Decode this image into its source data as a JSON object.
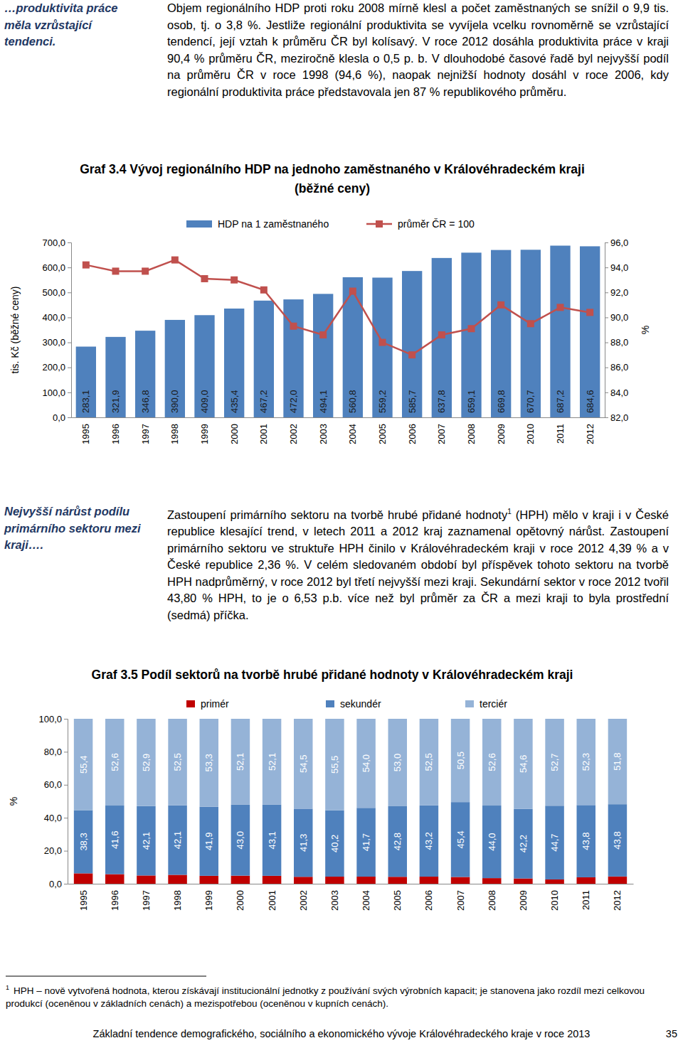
{
  "document": {
    "margin_note_1": "…produktivita práce měla vzrůstající tendenci.",
    "paragraph_1": "Objem regionálního HDP proti roku 2008 mírně klesl a počet zaměstnaných se snížil o 9,9 tis. osob, tj. o 3,8 %. Jestliže regionální produktivita se vyvíjela vcelku rovnoměrně se vzrůstající tendencí, její vztah k průměru ČR byl kolísavý. V roce 2012 dosáhla produktivita práce v kraji 90,4 % průměru ČR, meziročně klesla o 0,5 p. b. V dlouhodobé časové řadě byl nejvyšší podíl na průměru ČR v roce 1998 (94,6 %), naopak nejnižší hodnoty dosáhl v roce 2006, kdy regionální produktivita práce představovala jen 87 % republikového průměru.",
    "margin_note_2": "Nejvyšší nárůst podílu primárního sektoru mezi kraji….",
    "paragraph_2": {
      "before": "Zastoupení primárního sektoru na tvorbě hrubé přidané hodnoty",
      "note_mark": "1",
      "after": " (HPH) mělo v kraji i v České republice klesající trend, v letech 2011 a 2012 kraj zaznamenal opětovný nárůst. Zastoupení primárního sektoru ve struktuře HPH činilo v Královéhradeckém kraji v roce 2012 4,39 % a v České republice 2,36 %. V celém sledovaném období byl příspěvek tohoto sektoru na tvorbě HPH nadprůměrný, v roce 2012 byl třetí nejvyšší mezi kraji. Sekundární sektor v roce 2012 tvořil 43,80 % HPH, to je o 6,53 p.b. více než byl průměr za ČR a mezi kraji to byla prostřední (sedmá) příčka."
    },
    "footnote": {
      "mark": "1",
      "text": "HPH – nově vytvořená hodnota, kterou získávají institucionální jednotky z používání svých výrobních kapacit; je stanovena jako rozdíl mezi celkovou produkcí (oceněnou v základních cenách) a mezispotřebou (oceněnou v kupních cenách)."
    },
    "footer": "Základní tendence demografického, sociálního a ekonomického vývoje Královéhradeckého kraje v roce 2013",
    "page_number": 35
  },
  "chart_data": [
    {
      "type": "bar",
      "title": "Graf 3.4 Vývoj regionálního HDP na jednoho zaměstnaného v Královéhradeckém kraji",
      "subtitle": "(běžné ceny)",
      "categories": [
        "1995",
        "1996",
        "1997",
        "1998",
        "1999",
        "2000",
        "2001",
        "2002",
        "2003",
        "2004",
        "2005",
        "2006",
        "2007",
        "2008",
        "2009",
        "2010",
        "2011",
        "2012"
      ],
      "series": [
        {
          "name": "HDP na 1 zaměstnaného",
          "type": "bar",
          "color": "#4f81bd",
          "values": [
            283.1,
            321.9,
            346.8,
            390.0,
            409.0,
            435.4,
            467.2,
            472.0,
            494.1,
            560.8,
            559.2,
            585.7,
            637.8,
            659.1,
            669.8,
            670.7,
            687.2,
            684.6
          ],
          "value_labels": [
            "283,1",
            "321,9",
            "346,8",
            "390,0",
            "409,0",
            "435,4",
            "467,2",
            "472,0",
            "494,1",
            "560,8",
            "559,2",
            "585,7",
            "637,8",
            "659,1",
            "669,8",
            "670,7",
            "687,2",
            "684,6"
          ]
        },
        {
          "name": "průměr ČR = 100",
          "type": "line",
          "axis": "y2",
          "color": "#c0504d",
          "marker": "square",
          "values": [
            94.2,
            93.7,
            93.7,
            94.6,
            93.1,
            93.0,
            92.2,
            89.3,
            88.6,
            92.1,
            88.0,
            87.0,
            88.6,
            89.1,
            91.0,
            89.5,
            90.8,
            90.4
          ]
        }
      ],
      "y_label": "tis. Kč (běžné ceny)",
      "y2_label": "%",
      "ylim": [
        0,
        700
      ],
      "yticks": [
        {
          "value": 0,
          "label": "0,0"
        },
        {
          "value": 100,
          "label": "100,0"
        },
        {
          "value": 200,
          "label": "200,0"
        },
        {
          "value": 300,
          "label": "300,0"
        },
        {
          "value": 400,
          "label": "400,0"
        },
        {
          "value": 500,
          "label": "500,0"
        },
        {
          "value": 600,
          "label": "600,0"
        },
        {
          "value": 700,
          "label": "700,0"
        }
      ],
      "y2lim": [
        82,
        96
      ],
      "y2ticks": [
        {
          "value": 82,
          "label": "82,0"
        },
        {
          "value": 84,
          "label": "84,0"
        },
        {
          "value": 86,
          "label": "86,0"
        },
        {
          "value": 88,
          "label": "88,0"
        },
        {
          "value": 90,
          "label": "90,0"
        },
        {
          "value": 92,
          "label": "92,0"
        },
        {
          "value": 94,
          "label": "94,0"
        },
        {
          "value": 96,
          "label": "96,0"
        }
      ],
      "legend": "top",
      "data_labels": true,
      "grid": false
    },
    {
      "type": "bar",
      "stacked": true,
      "title": "Graf 3.5 Podíl sektorů na tvorbě hrubé přidané hodnoty v Královéhradeckém kraji",
      "categories": [
        "1995",
        "1996",
        "1997",
        "1998",
        "1999",
        "2000",
        "2001",
        "2002",
        "2003",
        "2004",
        "2005",
        "2006",
        "2007",
        "2008",
        "2009",
        "2010",
        "2011",
        "2012"
      ],
      "series": [
        {
          "name": "primér",
          "color": "#c00000",
          "values": [
            6.3,
            5.8,
            5.0,
            5.4,
            4.8,
            4.9,
            4.8,
            4.2,
            4.3,
            4.3,
            4.2,
            4.3,
            4.1,
            3.4,
            3.2,
            2.6,
            3.9,
            4.4
          ]
        },
        {
          "name": "sekundér",
          "color": "#4f81bd",
          "values": [
            38.3,
            41.6,
            42.1,
            42.1,
            41.9,
            43.0,
            43.1,
            41.3,
            40.2,
            41.7,
            42.8,
            43.2,
            45.4,
            44.0,
            42.2,
            44.7,
            43.8,
            43.8
          ],
          "value_labels": [
            "38,3",
            "41,6",
            "42,1",
            "42,1",
            "41,9",
            "43,0",
            "43,1",
            "41,3",
            "40,2",
            "41,7",
            "42,8",
            "43,2",
            "45,4",
            "44,0",
            "42,2",
            "44,7",
            "43,8",
            "43,8"
          ]
        },
        {
          "name": "terciér",
          "color": "#95b3d7",
          "values": [
            55.4,
            52.6,
            52.9,
            52.5,
            53.3,
            52.1,
            52.1,
            54.5,
            55.5,
            54.0,
            53.0,
            52.5,
            50.5,
            52.6,
            54.6,
            52.7,
            52.3,
            51.8
          ],
          "value_labels": [
            "55,4",
            "52,6",
            "52,9",
            "52,5",
            "53,3",
            "52,1",
            "52,1",
            "54,5",
            "55,5",
            "54,0",
            "53,0",
            "52,5",
            "50,5",
            "52,6",
            "54,6",
            "52,7",
            "52,3",
            "51,8"
          ]
        }
      ],
      "y_label": "%",
      "ylim": [
        0,
        100
      ],
      "yticks": [
        {
          "value": 0,
          "label": "0,0"
        },
        {
          "value": 20,
          "label": "20,0"
        },
        {
          "value": 40,
          "label": "40,0"
        },
        {
          "value": 60,
          "label": "60,0"
        },
        {
          "value": 80,
          "label": "80,0"
        },
        {
          "value": 100,
          "label": "100,0"
        }
      ],
      "legend": "top",
      "data_labels": true,
      "grid": false
    }
  ]
}
